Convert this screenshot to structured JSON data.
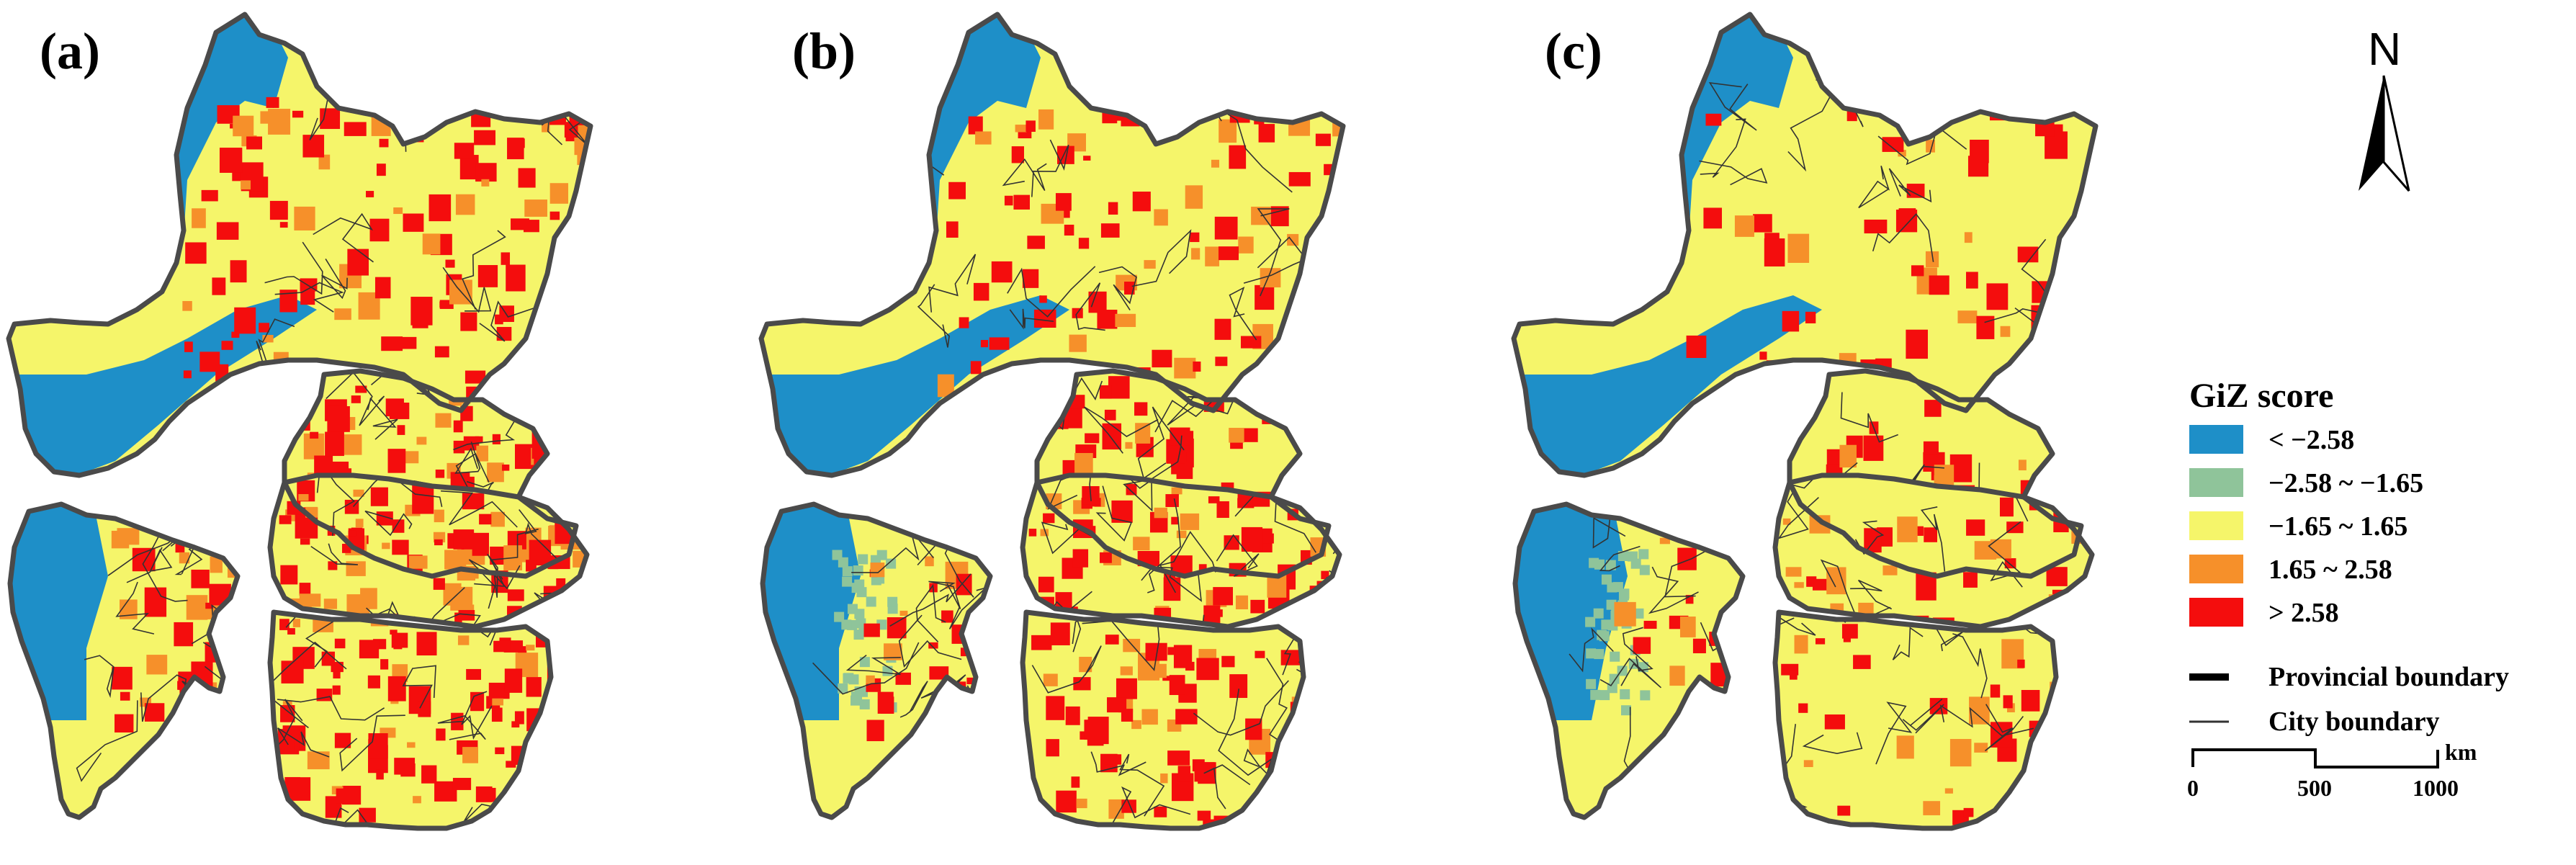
{
  "panels": [
    {
      "label": "(a)",
      "hot": 1.0
    },
    {
      "label": "(b)",
      "hot": 0.75
    },
    {
      "label": "(c)",
      "hot": 0.35
    }
  ],
  "north": "N",
  "legend": {
    "title": "GiZ score",
    "classes": [
      {
        "label": "< −2.58",
        "color": "#1E8FC8"
      },
      {
        "label": "−2.58 ~ −1.65",
        "color": "#8FC49A"
      },
      {
        "label": "−1.65 ~ 1.65",
        "color": "#F5F56A"
      },
      {
        "label": "1.65 ~ 2.58",
        "color": "#F6902A"
      },
      {
        "label": "> 2.58",
        "color": "#F40D0D"
      }
    ],
    "lines": [
      {
        "label": "Provincial boundary",
        "type": "provincial"
      },
      {
        "label": "City boundary",
        "type": "city"
      }
    ]
  },
  "scale": {
    "unit": "km",
    "ticks": [
      "0",
      "500",
      "1000"
    ]
  },
  "colors": {
    "boundary": "#4a4a4a",
    "city_line": "#333333"
  }
}
